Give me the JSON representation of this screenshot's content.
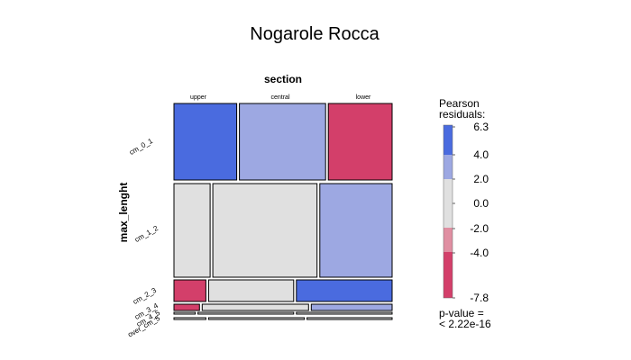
{
  "chart_data": {
    "type": "mosaic",
    "title": "Nogarole Rocca",
    "column_variable": "section",
    "row_variable": "max_lenght",
    "columns": [
      "upper",
      "central",
      "lower"
    ],
    "rows": [
      "cm_0_1",
      "cm_1_2",
      "cm_2_3",
      "cm_3_4",
      "cm_4_5",
      "over_cm_5"
    ],
    "row_labels_shown": [
      "cm_0_1",
      "cm_1_2",
      "cm_2_3",
      "cm_3_4",
      "cm_4_5",
      "over_cm_5"
    ],
    "column_proportions": [
      0.23,
      0.49,
      0.28
    ],
    "cells": [
      {
        "row": "cm_0_1",
        "values": [
          0.295,
          0.405,
          0.3
        ],
        "shades": [
          "strong_pos",
          "mod_pos",
          "strong_neg"
        ]
      },
      {
        "row": "cm_1_2",
        "values": [
          0.17,
          0.49,
          0.34
        ],
        "shades": [
          "neutral",
          "neutral",
          "mod_pos"
        ]
      },
      {
        "row": "cm_2_3",
        "values": [
          0.15,
          0.4,
          0.45
        ],
        "shades": [
          "strong_neg",
          "neutral",
          "strong_pos"
        ]
      },
      {
        "row": "cm_3_4",
        "values": [
          0.12,
          0.5,
          0.38
        ],
        "shades": [
          "strong_neg",
          "neutral",
          "mod_pos"
        ]
      },
      {
        "row": "cm_4_5",
        "values": [
          0.1,
          0.45,
          0.45
        ],
        "shades": [
          "neutral",
          "neutral",
          "neutral"
        ]
      },
      {
        "row": "over_cm_5",
        "values": [
          0.15,
          0.45,
          0.4
        ],
        "shades": [
          "neutral",
          "neutral",
          "neutral"
        ]
      }
    ],
    "row_proportions": [
      0.31,
      0.37,
      0.09,
      0.025,
      0.01,
      0.01
    ],
    "legend": {
      "title": "Pearson residuals:",
      "ticks": [
        "6.3",
        "4.0",
        "2.0",
        "0.0",
        "-2.0",
        "-4.0",
        "-7.8"
      ],
      "pvalue_label": "p-value =",
      "pvalue": "< 2.22e-16"
    },
    "colors": {
      "strong_pos": "#4a6bdf",
      "mod_pos": "#9da8e2",
      "neutral": "#e0e0e0",
      "mod_neg": "#e08fa2",
      "strong_neg": "#d33f6a"
    }
  }
}
